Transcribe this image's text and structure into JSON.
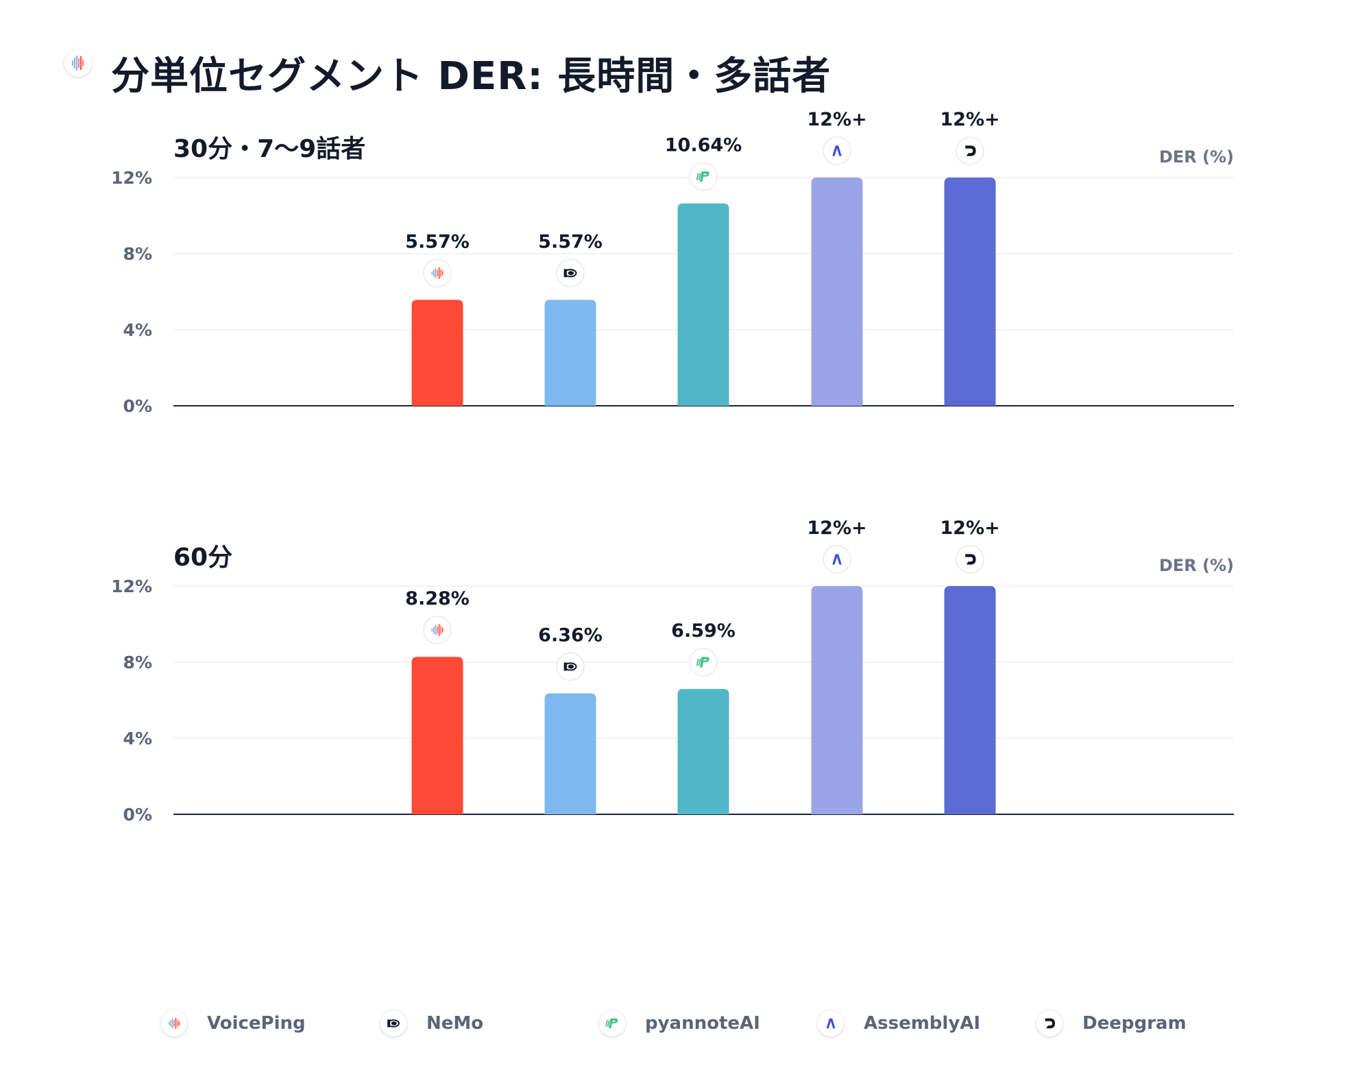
{
  "page": {
    "title": "分単位セグメント DER: 長時間・多話者"
  },
  "legend": [
    {
      "name": "VoicePing",
      "icon": "voiceping-logo-icon",
      "color": "#ff4b36"
    },
    {
      "name": "NeMo",
      "icon": "nemo-logo-icon",
      "color": "#7db9ef"
    },
    {
      "name": "pyannoteAI",
      "icon": "pyannoteai-logo-icon",
      "color": "#52b6c9"
    },
    {
      "name": "AssemblyAI",
      "icon": "assemblyai-logo-icon",
      "color": "#9aa4e8"
    },
    {
      "name": "Deepgram",
      "icon": "deepgram-logo-icon",
      "color": "#5b6bd4"
    }
  ],
  "chart_data": [
    {
      "type": "bar",
      "title": "30分・7〜9話者",
      "ylabel": "DER (%)",
      "ylim": [
        0,
        12
      ],
      "yticks": [
        0,
        4,
        8,
        12
      ],
      "ytick_labels": [
        "0%",
        "4%",
        "8%",
        "12%"
      ],
      "grid": true,
      "categories": [
        "VoicePing",
        "NeMo",
        "pyannoteAI",
        "AssemblyAI",
        "Deepgram"
      ],
      "values": [
        5.57,
        5.57,
        10.64,
        12,
        12
      ],
      "data_labels": [
        "5.57%",
        "5.57%",
        "10.64%",
        "12%+",
        "12%+"
      ]
    },
    {
      "type": "bar",
      "title": "60分",
      "ylabel": "DER (%)",
      "ylim": [
        0,
        12
      ],
      "yticks": [
        0,
        4,
        8,
        12
      ],
      "ytick_labels": [
        "0%",
        "4%",
        "8%",
        "12%"
      ],
      "grid": true,
      "categories": [
        "VoicePing",
        "NeMo",
        "pyannoteAI",
        "AssemblyAI",
        "Deepgram"
      ],
      "values": [
        8.28,
        6.36,
        6.59,
        12,
        12
      ],
      "data_labels": [
        "8.28%",
        "6.36%",
        "6.59%",
        "12%+",
        "12%+"
      ]
    }
  ]
}
